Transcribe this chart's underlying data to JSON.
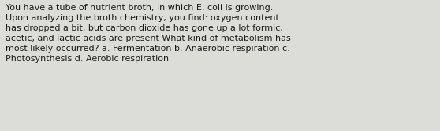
{
  "text": "You have a tube of nutrient broth, in which E. coli is growing.\nUpon analyzing the broth chemistry, you find: oxygen content\nhas dropped a bit, but carbon dioxide has gone up a lot formic,\nacetic, and lactic acids are present What kind of metabolism has\nmost likely occurred? a. Fermentation b. Anaerobic respiration c.\nPhotosynthesis d. Aerobic respiration",
  "background_color": "#ddddd7",
  "text_color": "#1a1a1a",
  "font_size": 8.0,
  "fig_width": 5.58,
  "fig_height": 1.67,
  "dpi": 100
}
